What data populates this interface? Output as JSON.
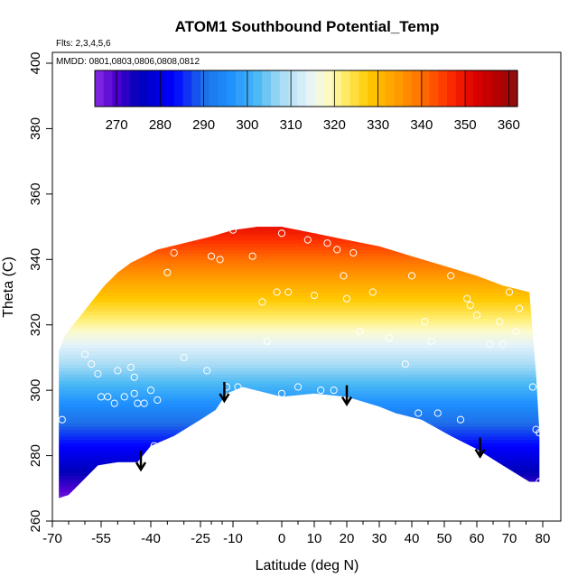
{
  "chart_data": {
    "type": "heatmap",
    "title": "ATOM1 Southbound Potential_Temp",
    "xlabel": "Latitude (deg N)",
    "ylabel": "Theta (C)",
    "xlim": [
      -70,
      82
    ],
    "ylim": [
      260,
      403
    ],
    "x_ticks": [
      -70,
      -55,
      -40,
      -25,
      -10,
      0,
      10,
      20,
      30,
      40,
      50,
      60,
      70,
      80
    ],
    "x_tick_labels": [
      "-70",
      "-55",
      "-40",
      "-25",
      "-10",
      "0",
      "10",
      "20",
      "30",
      "40",
      "50",
      "60",
      "70",
      "80"
    ],
    "y_ticks": [
      260,
      280,
      300,
      320,
      340,
      360,
      380,
      400
    ],
    "y_tick_labels": [
      "260",
      "280",
      "300",
      "320",
      "340",
      "360",
      "380",
      "400"
    ],
    "flights_note": "Flts: 2,3,4,5,6",
    "dates_note": "MMDD: 0801,0803,0806,0808,0812",
    "colorbar": {
      "min": 265,
      "max": 362,
      "ticks": [
        270,
        280,
        290,
        300,
        310,
        320,
        330,
        340,
        350,
        360
      ],
      "tick_labels": [
        "270",
        "280",
        "290",
        "300",
        "310",
        "320",
        "330",
        "340",
        "350",
        "360"
      ]
    },
    "field_top": [
      {
        "lat": -68,
        "theta": 312
      },
      {
        "lat": -66,
        "theta": 317
      },
      {
        "lat": -62,
        "theta": 322
      },
      {
        "lat": -58,
        "theta": 327
      },
      {
        "lat": -54,
        "theta": 332
      },
      {
        "lat": -50,
        "theta": 336
      },
      {
        "lat": -46,
        "theta": 339
      },
      {
        "lat": -42,
        "theta": 341
      },
      {
        "lat": -38,
        "theta": 343
      },
      {
        "lat": -30,
        "theta": 345
      },
      {
        "lat": -20,
        "theta": 347
      },
      {
        "lat": -10,
        "theta": 349
      },
      {
        "lat": -5,
        "theta": 350
      },
      {
        "lat": 0,
        "theta": 350
      },
      {
        "lat": 10,
        "theta": 348
      },
      {
        "lat": 20,
        "theta": 346
      },
      {
        "lat": 30,
        "theta": 344
      },
      {
        "lat": 40,
        "theta": 341
      },
      {
        "lat": 50,
        "theta": 338
      },
      {
        "lat": 60,
        "theta": 335
      },
      {
        "lat": 68,
        "theta": 332
      },
      {
        "lat": 76,
        "theta": 330
      },
      {
        "lat": 78,
        "theta": 305
      },
      {
        "lat": 79,
        "theta": 287
      }
    ],
    "field_bottom": [
      {
        "lat": -68,
        "theta": 267
      },
      {
        "lat": -65,
        "theta": 268
      },
      {
        "lat": -60,
        "theta": 273
      },
      {
        "lat": -56,
        "theta": 277
      },
      {
        "lat": -50,
        "theta": 278
      },
      {
        "lat": -44,
        "theta": 278
      },
      {
        "lat": -40,
        "theta": 283
      },
      {
        "lat": -33,
        "theta": 286
      },
      {
        "lat": -25,
        "theta": 291
      },
      {
        "lat": -18,
        "theta": 294
      },
      {
        "lat": -13,
        "theta": 299
      },
      {
        "lat": -8,
        "theta": 301
      },
      {
        "lat": 0,
        "theta": 298
      },
      {
        "lat": 10,
        "theta": 299
      },
      {
        "lat": 20,
        "theta": 298
      },
      {
        "lat": 30,
        "theta": 295
      },
      {
        "lat": 35,
        "theta": 293
      },
      {
        "lat": 43,
        "theta": 291
      },
      {
        "lat": 52,
        "theta": 286
      },
      {
        "lat": 60,
        "theta": 282
      },
      {
        "lat": 68,
        "theta": 277
      },
      {
        "lat": 76,
        "theta": 272
      },
      {
        "lat": 79,
        "theta": 272
      }
    ],
    "arrows": [
      {
        "lat": -43,
        "theta": 276
      },
      {
        "lat": -14,
        "theta": 297
      },
      {
        "lat": 20,
        "theta": 296
      },
      {
        "lat": 61,
        "theta": 280
      }
    ],
    "observations": [
      {
        "lat": -67,
        "theta": 291
      },
      {
        "lat": -60,
        "theta": 311
      },
      {
        "lat": -58,
        "theta": 308
      },
      {
        "lat": -56,
        "theta": 305
      },
      {
        "lat": -55,
        "theta": 298
      },
      {
        "lat": -53,
        "theta": 298
      },
      {
        "lat": -51,
        "theta": 296
      },
      {
        "lat": -50,
        "theta": 306
      },
      {
        "lat": -48,
        "theta": 298
      },
      {
        "lat": -46,
        "theta": 307
      },
      {
        "lat": -45,
        "theta": 304
      },
      {
        "lat": -45,
        "theta": 299
      },
      {
        "lat": -44,
        "theta": 296
      },
      {
        "lat": -42,
        "theta": 296
      },
      {
        "lat": -40,
        "theta": 300
      },
      {
        "lat": -38,
        "theta": 297
      },
      {
        "lat": -39,
        "theta": 283
      },
      {
        "lat": -35,
        "theta": 336
      },
      {
        "lat": -33,
        "theta": 342
      },
      {
        "lat": -30,
        "theta": 310
      },
      {
        "lat": -28,
        "theta": 286
      },
      {
        "lat": -22,
        "theta": 306
      },
      {
        "lat": -20,
        "theta": 341
      },
      {
        "lat": -16,
        "theta": 340
      },
      {
        "lat": -13,
        "theta": 301
      },
      {
        "lat": -10,
        "theta": 349
      },
      {
        "lat": -9,
        "theta": 301
      },
      {
        "lat": -6,
        "theta": 341
      },
      {
        "lat": -4,
        "theta": 327
      },
      {
        "lat": -3,
        "theta": 315
      },
      {
        "lat": -1,
        "theta": 330
      },
      {
        "lat": 0,
        "theta": 299
      },
      {
        "lat": 0,
        "theta": 348
      },
      {
        "lat": 2,
        "theta": 330
      },
      {
        "lat": 5,
        "theta": 301
      },
      {
        "lat": 8,
        "theta": 346
      },
      {
        "lat": 10,
        "theta": 329
      },
      {
        "lat": 12,
        "theta": 300
      },
      {
        "lat": 14,
        "theta": 345
      },
      {
        "lat": 16,
        "theta": 300
      },
      {
        "lat": 17,
        "theta": 343
      },
      {
        "lat": 19,
        "theta": 335
      },
      {
        "lat": 20,
        "theta": 328
      },
      {
        "lat": 22,
        "theta": 342
      },
      {
        "lat": 24,
        "theta": 318
      },
      {
        "lat": 28,
        "theta": 330
      },
      {
        "lat": 30,
        "theta": 291
      },
      {
        "lat": 33,
        "theta": 316
      },
      {
        "lat": 38,
        "theta": 308
      },
      {
        "lat": 40,
        "theta": 335
      },
      {
        "lat": 42,
        "theta": 293
      },
      {
        "lat": 44,
        "theta": 321
      },
      {
        "lat": 46,
        "theta": 315
      },
      {
        "lat": 48,
        "theta": 293
      },
      {
        "lat": 52,
        "theta": 335
      },
      {
        "lat": 55,
        "theta": 291
      },
      {
        "lat": 57,
        "theta": 328
      },
      {
        "lat": 58,
        "theta": 326
      },
      {
        "lat": 60,
        "theta": 323
      },
      {
        "lat": 64,
        "theta": 314
      },
      {
        "lat": 67,
        "theta": 321
      },
      {
        "lat": 68,
        "theta": 314
      },
      {
        "lat": 70,
        "theta": 330
      },
      {
        "lat": 72,
        "theta": 318
      },
      {
        "lat": 73,
        "theta": 325
      },
      {
        "lat": 77,
        "theta": 301
      },
      {
        "lat": 78,
        "theta": 288
      },
      {
        "lat": 79,
        "theta": 287
      },
      {
        "lat": 79,
        "theta": 272
      }
    ],
    "grid": false
  }
}
